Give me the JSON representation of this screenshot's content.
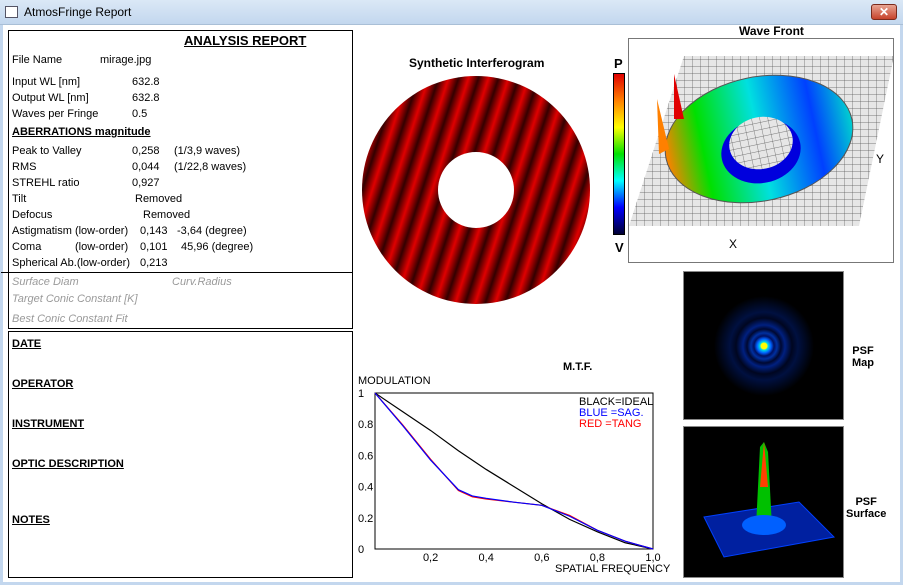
{
  "window": {
    "title": "AtmosFringe  Report",
    "close_label": "✕"
  },
  "report": {
    "title": "ANALYSIS  REPORT",
    "file_name_label": "File Name",
    "file_name": "mirage.jpg",
    "input_wl_label": "Input  WL [nm]",
    "input_wl": "632.8",
    "output_wl_label": "Output WL [nm]",
    "output_wl": "632.8",
    "waves_label": "Waves per Fringe",
    "waves": "0.5",
    "aberr_header": "ABERRATIONS magnitude",
    "ptv_label": "Peak to Valley",
    "ptv": "0,258",
    "ptv_waves": "(1/3,9 waves)",
    "rms_label": "RMS",
    "rms": "0,044",
    "rms_waves": "(1/22,8 waves)",
    "strehl_label": "STREHL ratio",
    "strehl": "0,927",
    "tilt_label": "Tilt",
    "tilt": "Removed",
    "defocus_label": "Defocus",
    "defocus": "Removed",
    "astig_label": "Astigmatism  (low-order)",
    "astig": "0,143",
    "astig_deg": "-3,64  (degree)",
    "coma_label": "Coma",
    "coma_order": "(low-order)",
    "coma": "0,101",
    "coma_deg": "45,96  (degree)",
    "spher_label": "Spherical Ab.(low-order)",
    "spher": "0,213",
    "surface_diam_label": "Surface Diam",
    "curv_radius_label": "Curv.Radius",
    "target_conic_label": "Target Conic Constant [K]",
    "best_conic_label": "Best Conic Constant Fit"
  },
  "info": {
    "date": "DATE",
    "operator": "OPERATOR",
    "instrument": "INSTRUMENT",
    "optic": "OPTIC DESCRIPTION",
    "notes": "NOTES"
  },
  "interferogram": {
    "title": "Synthetic Interferogram",
    "fringe_color": "#e00000"
  },
  "wavefront": {
    "title": "Wave Front",
    "scale_top": "P",
    "scale_bottom": "V",
    "x_label": "X",
    "y_label": "Y"
  },
  "psf": {
    "map_l1": "PSF",
    "map_l2": "Map",
    "surface_l1": "PSF",
    "surface_l2": "Surface"
  },
  "chart_data": {
    "type": "line",
    "title": "M.T.F.",
    "ylabel": "MODULATION",
    "xlabel": "SPATIAL FREQUENCY",
    "xlim": [
      0,
      1
    ],
    "ylim": [
      0,
      1
    ],
    "xticks": [
      "0,2",
      "0,4",
      "0,6",
      "0,8",
      "1,0"
    ],
    "yticks": [
      "0",
      "0.2",
      "0.4",
      "0.6",
      "0.8",
      "1"
    ],
    "legend": [
      "BLACK=IDEAL",
      "BLUE  =SAG.",
      "RED    =TANG"
    ],
    "legend_placement": "top-right",
    "x": [
      0,
      0.1,
      0.2,
      0.3,
      0.35,
      0.4,
      0.5,
      0.6,
      0.7,
      0.8,
      0.9,
      1.0
    ],
    "series": [
      {
        "name": "IDEAL",
        "color": "#000000",
        "values": [
          1,
          0.88,
          0.76,
          0.63,
          0.57,
          0.51,
          0.4,
          0.29,
          0.19,
          0.11,
          0.04,
          0
        ]
      },
      {
        "name": "SAG.",
        "color": "#0000ff",
        "values": [
          1,
          0.79,
          0.57,
          0.38,
          0.34,
          0.325,
          0.3,
          0.28,
          0.21,
          0.12,
          0.05,
          0
        ]
      },
      {
        "name": "TANG",
        "color": "#ff0000",
        "values": [
          1,
          0.795,
          0.575,
          0.375,
          0.335,
          0.32,
          0.3,
          0.28,
          0.215,
          0.12,
          0.05,
          0
        ]
      }
    ]
  }
}
